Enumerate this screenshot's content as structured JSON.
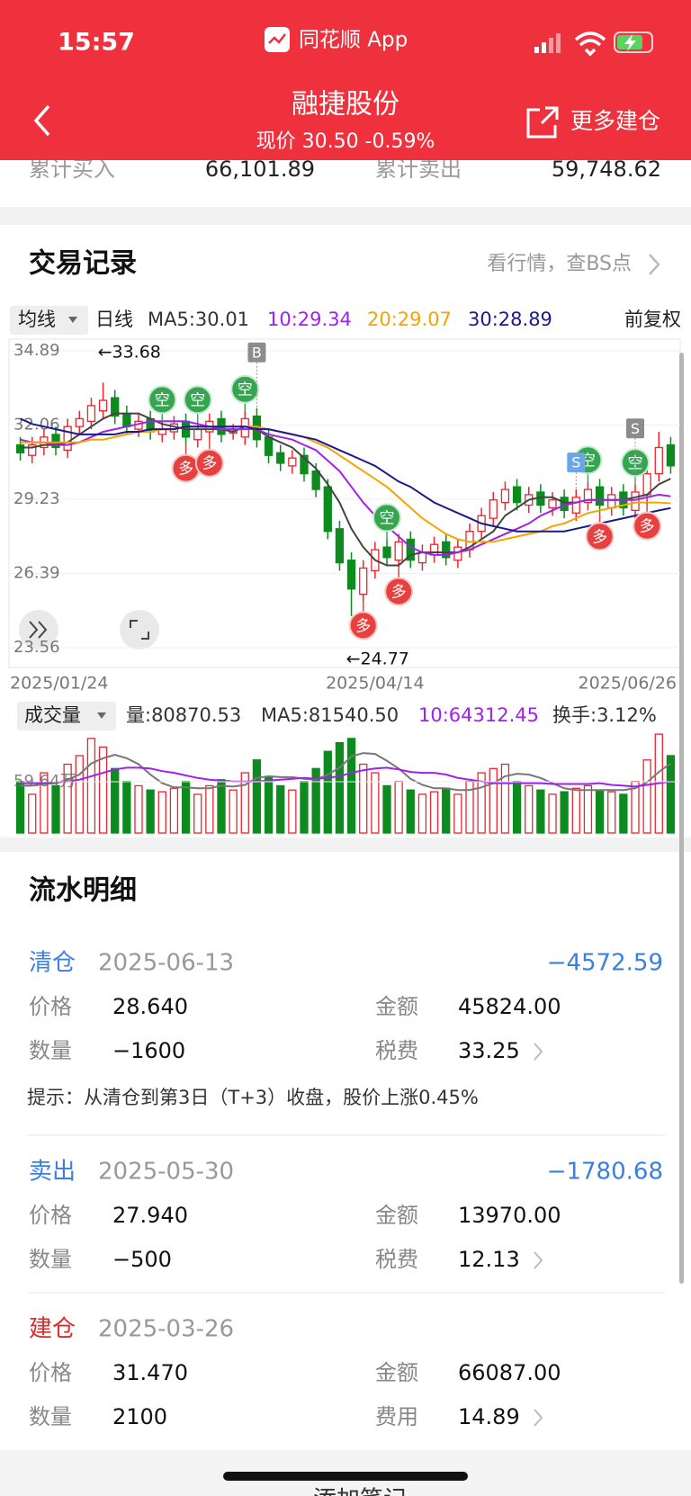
{
  "status_bar": {
    "time": "15:57",
    "app": "同花顺 App"
  },
  "header": {
    "title": "融捷股份",
    "subtitle": "现价 30.50 -0.59%",
    "action": "更多建仓"
  },
  "summary": {
    "items": [
      {
        "label": "累计买入",
        "value": "66,101.89"
      },
      {
        "label": "累计卖出",
        "value": "59,748.62"
      }
    ]
  },
  "section_title": "交易记录",
  "section_link": "看行情，查BS点",
  "chart_toolbar": {
    "indicator": "均线",
    "period": "日线",
    "ma": [
      {
        "label": "MA5:30.01",
        "color": "#333333"
      },
      {
        "label": "10:29.34",
        "color": "#a020f0"
      },
      {
        "label": "20:29.07",
        "color": "#f5a400"
      },
      {
        "label": "30:28.89",
        "color": "#1a1a8c"
      }
    ],
    "adjust": "前复权"
  },
  "volume_toolbar": {
    "indicator": "成交量",
    "items": [
      {
        "label": "量:80870.53",
        "color": "#333333"
      },
      {
        "label": "MA5:81540.50",
        "color": "#333333"
      },
      {
        "label": "10:64312.45",
        "color": "#a020f0"
      },
      {
        "label": "换手:3.12%",
        "color": "#333333"
      }
    ]
  },
  "chart_data": [
    {
      "type": "candlestick",
      "up_color": "#e8262f",
      "down_color": "#0e8b1e",
      "categories": [
        "2025/01/24",
        null,
        null,
        null,
        null,
        null,
        null,
        null,
        null,
        null,
        null,
        null,
        null,
        null,
        null,
        null,
        null,
        null,
        null,
        null,
        null,
        null,
        null,
        null,
        null,
        null,
        null,
        null,
        null,
        null,
        "2025/04/14",
        null,
        null,
        null,
        null,
        null,
        null,
        null,
        null,
        null,
        null,
        null,
        null,
        null,
        null,
        null,
        null,
        null,
        null,
        null,
        null,
        null,
        null,
        null,
        null,
        "2025/06/26"
      ],
      "open": [
        31.3,
        30.9,
        31.2,
        31.7,
        31.1,
        32.0,
        32.2,
        32.6,
        33.1,
        32.5,
        31.9,
        32.3,
        31.7,
        31.8,
        32.2,
        31.5,
        31.8,
        32.3,
        31.8,
        31.6,
        32.4,
        31.6,
        31.0,
        30.5,
        30.9,
        30.3,
        29.7,
        28.1,
        26.9,
        25.6,
        26.5,
        27.4,
        26.9,
        27.7,
        26.8,
        27.1,
        27.6,
        26.9,
        27.3,
        28.0,
        28.5,
        29.1,
        29.7,
        29.0,
        29.5,
        28.9,
        29.3,
        28.7,
        29.1,
        29.7,
        28.9,
        29.5,
        28.8,
        29.4,
        30.2,
        31.3
      ],
      "high": [
        31.6,
        31.6,
        31.9,
        32.0,
        32.3,
        32.6,
        33.1,
        33.68,
        33.4,
        32.8,
        32.5,
        32.6,
        32.2,
        32.4,
        32.5,
        32.2,
        32.5,
        32.6,
        32.1,
        32.6,
        32.7,
        31.9,
        31.3,
        31.1,
        31.2,
        30.6,
        30.0,
        28.4,
        27.2,
        26.9,
        27.6,
        27.7,
        27.9,
        28.0,
        27.5,
        27.8,
        27.9,
        27.7,
        28.3,
        28.9,
        29.5,
        29.9,
        30.0,
        29.7,
        29.8,
        29.5,
        29.6,
        29.6,
        29.9,
        30.0,
        29.7,
        29.8,
        29.8,
        30.5,
        31.8,
        31.6
      ],
      "low": [
        30.7,
        30.6,
        30.9,
        30.9,
        30.8,
        31.7,
        31.9,
        32.3,
        32.1,
        31.7,
        31.6,
        31.5,
        31.4,
        31.5,
        31.3,
        31.2,
        31.5,
        31.4,
        31.5,
        31.3,
        31.2,
        30.6,
        30.3,
        30.2,
        29.9,
        29.3,
        27.7,
        26.5,
        24.77,
        25.3,
        26.2,
        26.7,
        26.6,
        26.6,
        26.5,
        26.8,
        26.7,
        26.6,
        27.0,
        27.7,
        28.2,
        28.8,
        28.8,
        28.7,
        28.7,
        28.6,
        28.5,
        28.4,
        28.8,
        28.7,
        28.6,
        28.6,
        28.5,
        29.1,
        29.9,
        30.2
      ],
      "close": [
        31.0,
        31.3,
        31.6,
        31.2,
        32.0,
        32.3,
        32.8,
        33.0,
        32.4,
        32.0,
        32.2,
        31.8,
        31.9,
        32.1,
        31.6,
        31.9,
        32.2,
        31.7,
        31.8,
        32.3,
        31.5,
        30.9,
        30.6,
        30.8,
        30.2,
        29.6,
        28.0,
        26.8,
        25.8,
        26.6,
        27.3,
        27.0,
        27.6,
        26.9,
        27.2,
        27.5,
        27.0,
        27.4,
        28.0,
        28.6,
        29.2,
        29.6,
        29.1,
        29.4,
        29.0,
        29.2,
        28.8,
        29.3,
        29.6,
        29.0,
        29.4,
        28.9,
        29.5,
        30.2,
        31.2,
        30.5
      ],
      "ma_lines": [
        {
          "color": "#444444",
          "values": [
            31.2,
            31.2,
            31.3,
            31.3,
            31.4,
            31.7,
            32.0,
            32.3,
            32.5,
            32.5,
            32.5,
            32.3,
            32.1,
            32.0,
            31.9,
            31.9,
            31.9,
            31.9,
            31.8,
            32.0,
            31.9,
            31.6,
            31.4,
            31.2,
            30.8,
            30.4,
            29.8,
            29.1,
            28.1,
            27.4,
            26.9,
            26.7,
            26.7,
            27.1,
            27.2,
            27.2,
            27.2,
            27.2,
            27.4,
            27.7,
            28.0,
            28.6,
            28.9,
            29.2,
            29.3,
            29.3,
            29.1,
            29.1,
            29.2,
            29.2,
            29.2,
            29.2,
            29.3,
            29.4,
            29.8,
            30.01
          ]
        },
        {
          "color": "#a020f0",
          "values": [
            31.5,
            31.4,
            31.4,
            31.3,
            31.3,
            31.4,
            31.6,
            31.8,
            31.9,
            32.0,
            32.1,
            32.2,
            32.2,
            32.2,
            32.2,
            32.1,
            32.0,
            31.9,
            31.9,
            31.9,
            31.9,
            31.7,
            31.6,
            31.5,
            31.3,
            31.1,
            30.7,
            30.3,
            29.7,
            29.1,
            28.6,
            28.2,
            27.8,
            27.4,
            27.2,
            27.1,
            27.1,
            27.2,
            27.3,
            27.5,
            27.7,
            27.9,
            28.1,
            28.3,
            28.6,
            28.8,
            29.0,
            29.1,
            29.2,
            29.2,
            29.2,
            29.2,
            29.2,
            29.3,
            29.4,
            29.34
          ]
        },
        {
          "color": "#f5a400",
          "values": [
            31.4,
            31.4,
            31.4,
            31.4,
            31.4,
            31.4,
            31.5,
            31.5,
            31.6,
            31.7,
            31.8,
            31.8,
            31.9,
            31.9,
            32.0,
            32.0,
            32.0,
            32.0,
            32.0,
            32.0,
            32.0,
            31.9,
            31.8,
            31.7,
            31.6,
            31.4,
            31.2,
            30.9,
            30.6,
            30.3,
            30.0,
            29.7,
            29.3,
            28.9,
            28.5,
            28.2,
            27.9,
            27.7,
            27.6,
            27.6,
            27.6,
            27.7,
            27.8,
            27.9,
            28.0,
            28.2,
            28.3,
            28.5,
            28.7,
            28.8,
            28.9,
            29.0,
            29.1,
            29.1,
            29.1,
            29.07
          ]
        },
        {
          "color": "#1a1a8c",
          "values": [
            32.3,
            32.1,
            32.0,
            31.9,
            31.8,
            31.7,
            31.7,
            31.7,
            31.7,
            31.8,
            31.8,
            31.9,
            31.9,
            31.9,
            32.0,
            32.0,
            32.0,
            32.0,
            32.0,
            32.0,
            31.9,
            31.9,
            31.8,
            31.7,
            31.6,
            31.5,
            31.3,
            31.1,
            30.9,
            30.7,
            30.5,
            30.2,
            29.9,
            29.7,
            29.4,
            29.1,
            28.9,
            28.7,
            28.5,
            28.3,
            28.2,
            28.1,
            28.0,
            28.0,
            28.0,
            28.0,
            28.0,
            28.1,
            28.2,
            28.3,
            28.4,
            28.5,
            28.6,
            28.7,
            28.8,
            28.89
          ]
        }
      ],
      "ylim": [
        23.56,
        34.89
      ],
      "yticks": [
        34.89,
        32.06,
        29.23,
        26.39,
        23.56
      ],
      "grid": true,
      "annotations": [
        {
          "label": "←33.68",
          "index": 7,
          "at": "high"
        },
        {
          "label": "←24.77",
          "index": 28,
          "at": "low"
        }
      ],
      "markers": [
        {
          "label": "空",
          "index": 12,
          "kind": "empty"
        },
        {
          "label": "空",
          "index": 15,
          "kind": "empty"
        },
        {
          "label": "空",
          "index": 19,
          "kind": "empty"
        },
        {
          "label": "空",
          "index": 31,
          "kind": "empty"
        },
        {
          "label": "空",
          "index": 48,
          "kind": "empty"
        },
        {
          "label": "空",
          "index": 52,
          "kind": "empty"
        },
        {
          "label": "多",
          "index": 14,
          "kind": "long"
        },
        {
          "label": "多",
          "index": 16,
          "kind": "long"
        },
        {
          "label": "多",
          "index": 29,
          "kind": "long"
        },
        {
          "label": "多",
          "index": 32,
          "kind": "long"
        },
        {
          "label": "多",
          "index": 49,
          "kind": "long"
        },
        {
          "label": "多",
          "index": 53,
          "kind": "long"
        },
        {
          "label": "B",
          "index": 20,
          "kind": "trade"
        },
        {
          "label": "S",
          "index": 47,
          "kind": "sell"
        },
        {
          "label": "S",
          "index": 52,
          "kind": "trade"
        }
      ]
    },
    {
      "type": "bar",
      "values": [
        60,
        45,
        70,
        55,
        80,
        90,
        110,
        100,
        75,
        60,
        55,
        50,
        48,
        52,
        60,
        45,
        55,
        62,
        50,
        70,
        85,
        65,
        55,
        50,
        60,
        75,
        95,
        105,
        110,
        80,
        70,
        55,
        60,
        50,
        45,
        48,
        52,
        45,
        60,
        70,
        75,
        80,
        60,
        55,
        50,
        45,
        48,
        52,
        55,
        50,
        48,
        45,
        60,
        85,
        115,
        90
      ],
      "ma_lines": [
        {
          "color": "#777777",
          "values": [
            55,
            55,
            57,
            58,
            62,
            68,
            81,
            87,
            91,
            87,
            80,
            68,
            58,
            53,
            53,
            52,
            52,
            55,
            54,
            56,
            64,
            66,
            65,
            65,
            63,
            62,
            68,
            76,
            89,
            93,
            92,
            84,
            75,
            63,
            56,
            52,
            52,
            50,
            50,
            53,
            58,
            66,
            69,
            68,
            64,
            58,
            52,
            50,
            50,
            50,
            50,
            50,
            52,
            59,
            71,
            81
          ]
        },
        {
          "color": "#a020f0",
          "values": [
            58,
            58,
            58,
            59,
            60,
            62,
            66,
            70,
            74,
            76,
            76,
            75,
            72,
            70,
            67,
            64,
            62,
            61,
            60,
            60,
            60,
            61,
            62,
            63,
            64,
            63,
            64,
            66,
            70,
            73,
            75,
            76,
            74,
            71,
            70,
            70,
            68,
            64,
            62,
            60,
            58,
            58,
            58,
            58,
            58,
            57,
            57,
            57,
            57,
            58,
            56,
            55,
            54,
            56,
            58,
            60
          ]
        }
      ],
      "ylim": [
        0,
        119.28
      ],
      "yticks": [
        {
          "value": 59.64,
          "label": "59.64万"
        }
      ]
    }
  ],
  "details_title": "流水明细",
  "records": [
    {
      "type": "清仓",
      "color": "#3b7fe3",
      "date": "2025-06-13",
      "amount": "−4572.59",
      "fields": [
        {
          "label": "价格",
          "value": "28.640"
        },
        {
          "label": "金额",
          "value": "45824.00"
        },
        {
          "label": "数量",
          "value": "−1600"
        },
        {
          "label": "税费",
          "value": "33.25"
        }
      ],
      "hint": "提示：从清仓到第3日（T+3）收盘，股价上涨0.45%"
    },
    {
      "type": "卖出",
      "color": "#3b7fe3",
      "date": "2025-05-30",
      "amount": "−1780.68",
      "fields": [
        {
          "label": "价格",
          "value": "27.940"
        },
        {
          "label": "金额",
          "value": "13970.00"
        },
        {
          "label": "数量",
          "value": "−500"
        },
        {
          "label": "税费",
          "value": "12.13"
        }
      ]
    },
    {
      "type": "建仓",
      "color": "#e02a2a",
      "date": "2025-03-26",
      "amount": null,
      "fields": [
        {
          "label": "价格",
          "value": "31.470"
        },
        {
          "label": "金额",
          "value": "66087.00"
        },
        {
          "label": "数量",
          "value": "2100"
        },
        {
          "label": "费用",
          "value": "14.89"
        }
      ]
    }
  ],
  "footer_action": "添加笔记"
}
